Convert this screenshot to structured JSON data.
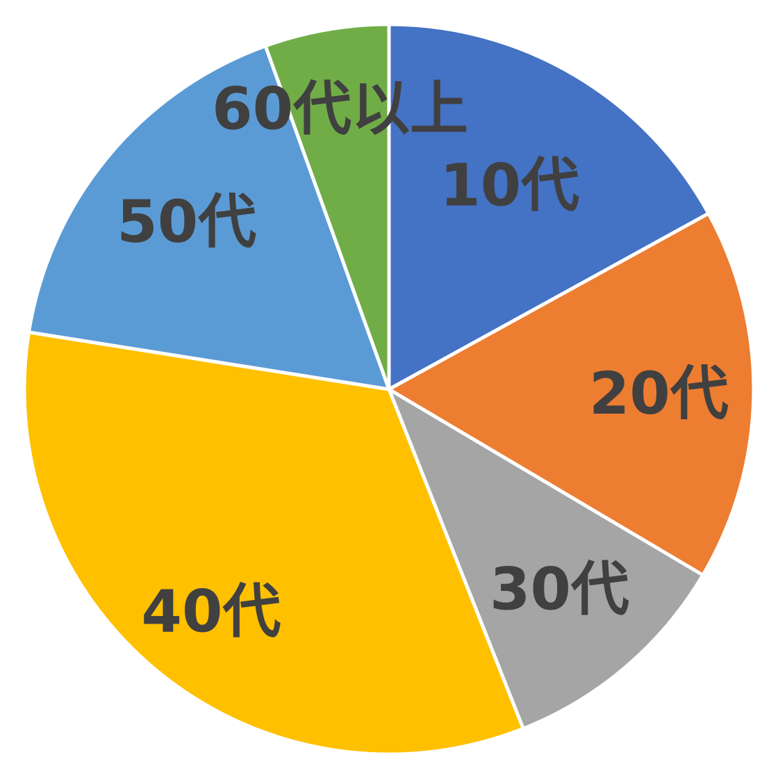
{
  "chart_data": {
    "type": "pie",
    "title": "",
    "categories": [
      "10代",
      "20代",
      "30代",
      "40代",
      "50代",
      "60代以上"
    ],
    "values": [
      17,
      16.5,
      10.5,
      33.5,
      17,
      5.5
    ],
    "unit": "%",
    "colors": [
      "#4472C4",
      "#ED7D31",
      "#A5A5A5",
      "#FFC000",
      "#5B9BD5",
      "#70AD47"
    ],
    "start_angle": "12 o'clock",
    "direction": "clockwise",
    "label_color": "#404040",
    "legend": "none"
  }
}
